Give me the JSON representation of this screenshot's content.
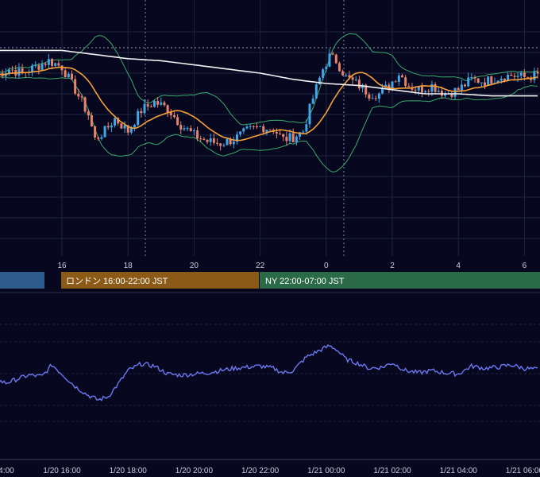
{
  "colors": {
    "background": "#07081f",
    "grid": "#1f2340",
    "candle_up": "#3fa7e8",
    "candle_down": "#e8826a",
    "ma_fast": "#f3a03a",
    "ma_slow": "#f2f2f2",
    "bollinger": "#3aa86a",
    "rsi_line": "#6c77f0",
    "session_tokyo": "#2d5b8c",
    "session_london": "#8a5a16",
    "session_ny": "#2a6a46"
  },
  "sessions": [
    {
      "label": "",
      "color_key": "session_tokyo"
    },
    {
      "label": "ロンドン 16:00-22:00 JST",
      "color_key": "session_london"
    },
    {
      "label": "NY 22:00-07:00 JST",
      "color_key": "session_ny"
    }
  ],
  "chart_data": [
    {
      "type": "candlestick",
      "title": "",
      "x_ticks": [
        "16",
        "18",
        "20",
        "22",
        "0",
        "2",
        "4",
        "6"
      ],
      "x_start": 14.0,
      "x_step_hours": 0.1,
      "y_range": [
        0,
        100
      ],
      "grid": true,
      "legend": "none",
      "overlays": [
        "moving-average-fast",
        "moving-average-slow",
        "bollinger-bands"
      ],
      "anchor_closes": [
        [
          14.0,
          79
        ],
        [
          14.4,
          82
        ],
        [
          14.8,
          80
        ],
        [
          15.2,
          83
        ],
        [
          15.6,
          86
        ],
        [
          16.0,
          83
        ],
        [
          16.4,
          72
        ],
        [
          16.8,
          60
        ],
        [
          17.0,
          48
        ],
        [
          17.3,
          52
        ],
        [
          17.6,
          58
        ],
        [
          18.0,
          52
        ],
        [
          18.4,
          62
        ],
        [
          18.8,
          66
        ],
        [
          19.2,
          63
        ],
        [
          19.6,
          55
        ],
        [
          20.0,
          50
        ],
        [
          20.4,
          47
        ],
        [
          20.8,
          46
        ],
        [
          21.2,
          48
        ],
        [
          21.6,
          52
        ],
        [
          22.0,
          54
        ],
        [
          22.4,
          53
        ],
        [
          22.7,
          48
        ],
        [
          23.0,
          49
        ],
        [
          23.3,
          52
        ],
        [
          23.6,
          68
        ],
        [
          23.9,
          82
        ],
        [
          24.1,
          88
        ],
        [
          24.3,
          86
        ],
        [
          24.6,
          78
        ],
        [
          25.0,
          74
        ],
        [
          25.3,
          70
        ],
        [
          25.6,
          70
        ],
        [
          25.9,
          74
        ],
        [
          26.2,
          80
        ],
        [
          26.5,
          74
        ],
        [
          26.8,
          72
        ],
        [
          27.2,
          74
        ],
        [
          27.6,
          70
        ],
        [
          28.0,
          72
        ],
        [
          28.4,
          77
        ],
        [
          28.8,
          76
        ],
        [
          29.2,
          78
        ],
        [
          29.6,
          79
        ],
        [
          30.0,
          78
        ],
        [
          30.4,
          79
        ]
      ],
      "ma_slow_points": [
        [
          14.0,
          91
        ],
        [
          15.0,
          91
        ],
        [
          16.0,
          91
        ],
        [
          17.0,
          89
        ],
        [
          18.0,
          87
        ],
        [
          19.0,
          86
        ],
        [
          20.0,
          84
        ],
        [
          21.0,
          82
        ],
        [
          22.0,
          80
        ],
        [
          23.0,
          77
        ],
        [
          24.0,
          75
        ],
        [
          25.0,
          74
        ],
        [
          26.0,
          72
        ],
        [
          27.0,
          70
        ],
        [
          28.0,
          70
        ],
        [
          29.0,
          69
        ],
        [
          30.4,
          69
        ]
      ]
    },
    {
      "type": "line",
      "title": "",
      "x_ticks": [
        "4:00",
        "1/20 16:00",
        "1/20 18:00",
        "1/20 20:00",
        "1/20 22:00",
        "1/21 00:00",
        "1/21 02:00",
        "1/21 04:00",
        "1/21 06:00"
      ],
      "y_range": [
        0,
        100
      ],
      "grid": true,
      "series": [
        {
          "name": "",
          "anchors": [
            [
              14.0,
              44
            ],
            [
              14.3,
              41
            ],
            [
              14.6,
              44
            ],
            [
              15.0,
              48
            ],
            [
              15.4,
              47
            ],
            [
              15.7,
              57
            ],
            [
              16.0,
              49
            ],
            [
              16.4,
              38
            ],
            [
              16.8,
              30
            ],
            [
              17.1,
              26
            ],
            [
              17.4,
              29
            ],
            [
              17.7,
              40
            ],
            [
              18.0,
              52
            ],
            [
              18.4,
              58
            ],
            [
              18.8,
              56
            ],
            [
              19.2,
              49
            ],
            [
              19.6,
              48
            ],
            [
              20.0,
              49
            ],
            [
              20.4,
              50
            ],
            [
              20.8,
              52
            ],
            [
              21.2,
              54
            ],
            [
              21.6,
              55
            ],
            [
              22.0,
              56
            ],
            [
              22.4,
              54
            ],
            [
              22.7,
              50
            ],
            [
              23.0,
              52
            ],
            [
              23.4,
              64
            ],
            [
              23.8,
              70
            ],
            [
              24.1,
              74
            ],
            [
              24.3,
              71
            ],
            [
              24.6,
              62
            ],
            [
              25.0,
              58
            ],
            [
              25.3,
              54
            ],
            [
              25.7,
              55
            ],
            [
              26.0,
              59
            ],
            [
              26.4,
              52
            ],
            [
              26.8,
              50
            ],
            [
              27.2,
              52
            ],
            [
              27.6,
              50
            ],
            [
              28.0,
              49
            ],
            [
              28.4,
              56
            ],
            [
              28.8,
              54
            ],
            [
              29.2,
              55
            ],
            [
              29.6,
              57
            ],
            [
              30.0,
              54
            ],
            [
              30.4,
              53
            ]
          ]
        }
      ]
    }
  ]
}
